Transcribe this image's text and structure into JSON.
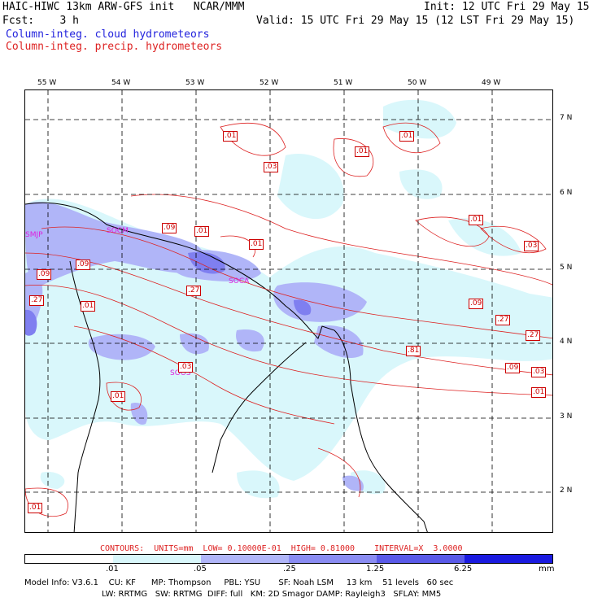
{
  "header": {
    "title_left": "HAIC-HIWC 13km ARW-GFS init   NCAR/MMM",
    "init": "Init: 12 UTC Fri 29 May 15",
    "fcst": "Fcst:    3 h",
    "valid": "Valid: 15 UTC Fri 29 May 15 (12 LST Fri 29 May 15)",
    "field1": "Column-integ. cloud hydrometeors",
    "field2": "Column-integ. precip. hydrometeors"
  },
  "map": {
    "lon_labels": [
      "55 W",
      "54 W",
      "53 W",
      "52 W",
      "51 W",
      "50 W",
      "49 W"
    ],
    "lat_labels": [
      "7 N",
      "6 N",
      "5 N",
      "4 N",
      "3 N",
      "2 N"
    ],
    "stations": [
      "SMJP",
      "SOCM",
      "SOCA",
      "SOOS"
    ],
    "contour_labels": [
      ".01",
      ".01",
      ".01",
      ".03",
      ".01",
      ".09",
      ".01",
      ".01",
      ".03",
      ".09",
      ".09",
      ".27",
      ".01",
      ".27",
      ".09",
      ".27",
      ".27",
      ".81",
      ".03",
      ".09",
      ".03",
      ".01",
      ".01",
      ".01"
    ],
    "colors": {
      "cloud_low": "#d9f7fb",
      "cloud_mid": "#b0b5f8",
      "cloud_high": "#7f7ff0",
      "contour": "#dd2222",
      "coast": "#000000"
    }
  },
  "legend": {
    "contours_info": "CONTOURS:  UNITS=mm  LOW= 0.10000E-01  HIGH= 0.81000    INTERVAL=X  3.0000",
    "bar_labels": [
      ".01",
      ".05",
      ".25",
      "1.25",
      "6.25",
      "mm"
    ],
    "bar_colors": [
      "#ffffff",
      "#d9f7fb",
      "#b0b5f8",
      "#8a8cf2",
      "#5a5ae8",
      "#1a1ae0"
    ]
  },
  "model_info": {
    "line1": "Model Info: V3.6.1    CU: KF      MP: Thompson     PBL: YSU       SF: Noah LSM     13 km    51 levels   60 sec",
    "line2": "LW: RRTMG   SW: RRTMG  DIFF: full   KM: 2D Smagor DAMP: Rayleigh3   SFLAY: MM5"
  }
}
